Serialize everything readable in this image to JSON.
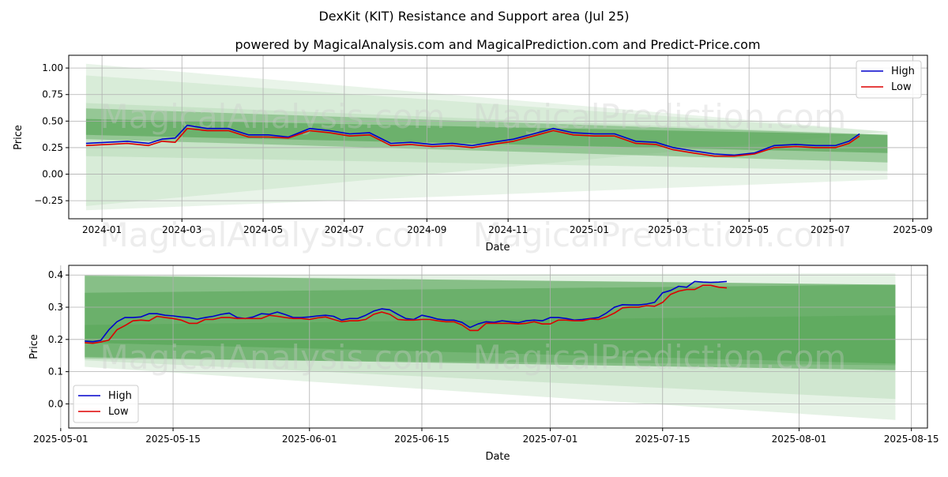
{
  "figure": {
    "title": "DexKit (KIT) Resistance and Support area (Jul 25)",
    "subtitle": "powered by MagicalAnalysis.com and MagicalPrediction.com and Predict-Price.com",
    "watermark_left": "MagicalAnalysis.com",
    "watermark_right": "MagicalPrediction.com",
    "colors": {
      "high": "#0000cc",
      "low": "#dd0000",
      "band_dark": "#4a9e4a",
      "band_light": "#a8d5a8"
    }
  },
  "chart_data": [
    {
      "type": "line",
      "xlabel": "Date",
      "ylabel": "Price",
      "xlim": [
        "2023-12-07",
        "2025-09-12"
      ],
      "ylim": [
        -0.42,
        1.12
      ],
      "grid": true,
      "legend_position": "top-right",
      "x_ticks": [
        "2024-01",
        "2024-03",
        "2024-05",
        "2024-07",
        "2024-09",
        "2024-11",
        "2025-01",
        "2025-03",
        "2025-05",
        "2025-07",
        "2025-09"
      ],
      "x_tick_dates": [
        "2024-01-01",
        "2024-03-01",
        "2024-05-01",
        "2024-07-01",
        "2024-09-01",
        "2024-11-01",
        "2025-01-01",
        "2025-03-01",
        "2025-05-01",
        "2025-07-01",
        "2025-09-01"
      ],
      "y_ticks": [
        "1.00",
        "0.75",
        "0.50",
        "0.25",
        "0.00",
        "−0.25"
      ],
      "y_tick_values": [
        1.0,
        0.75,
        0.5,
        0.25,
        0.0,
        -0.25
      ],
      "series": [
        {
          "name": "High",
          "color": "#0000cc",
          "x": [
            "2023-12-20",
            "2024-01-05",
            "2024-01-20",
            "2024-02-05",
            "2024-02-15",
            "2024-02-25",
            "2024-03-05",
            "2024-03-20",
            "2024-04-05",
            "2024-04-20",
            "2024-05-05",
            "2024-05-20",
            "2024-06-05",
            "2024-06-20",
            "2024-07-05",
            "2024-07-20",
            "2024-08-05",
            "2024-08-20",
            "2024-09-05",
            "2024-09-20",
            "2024-10-05",
            "2024-10-20",
            "2024-11-05",
            "2024-11-20",
            "2024-12-05",
            "2024-12-20",
            "2025-01-05",
            "2025-01-20",
            "2025-02-05",
            "2025-02-20",
            "2025-03-05",
            "2025-03-20",
            "2025-04-05",
            "2025-04-20",
            "2025-05-05",
            "2025-05-20",
            "2025-06-05",
            "2025-06-20",
            "2025-07-05",
            "2025-07-15",
            "2025-07-23"
          ],
          "y": [
            0.29,
            0.3,
            0.31,
            0.29,
            0.33,
            0.34,
            0.46,
            0.43,
            0.43,
            0.37,
            0.37,
            0.35,
            0.43,
            0.41,
            0.38,
            0.39,
            0.29,
            0.3,
            0.28,
            0.29,
            0.27,
            0.3,
            0.33,
            0.38,
            0.43,
            0.39,
            0.38,
            0.38,
            0.31,
            0.3,
            0.25,
            0.22,
            0.19,
            0.18,
            0.2,
            0.27,
            0.28,
            0.27,
            0.27,
            0.31,
            0.38
          ]
        },
        {
          "name": "Low",
          "color": "#dd0000",
          "x": [
            "2023-12-20",
            "2024-01-05",
            "2024-01-20",
            "2024-02-05",
            "2024-02-15",
            "2024-02-25",
            "2024-03-05",
            "2024-03-20",
            "2024-04-05",
            "2024-04-20",
            "2024-05-05",
            "2024-05-20",
            "2024-06-05",
            "2024-06-20",
            "2024-07-05",
            "2024-07-20",
            "2024-08-05",
            "2024-08-20",
            "2024-09-05",
            "2024-09-20",
            "2024-10-05",
            "2024-10-20",
            "2024-11-05",
            "2024-11-20",
            "2024-12-05",
            "2024-12-20",
            "2025-01-05",
            "2025-01-20",
            "2025-02-05",
            "2025-02-20",
            "2025-03-05",
            "2025-03-20",
            "2025-04-05",
            "2025-04-20",
            "2025-05-05",
            "2025-05-20",
            "2025-06-05",
            "2025-06-20",
            "2025-07-05",
            "2025-07-15",
            "2025-07-23"
          ],
          "y": [
            0.27,
            0.28,
            0.29,
            0.27,
            0.31,
            0.3,
            0.43,
            0.41,
            0.41,
            0.35,
            0.35,
            0.34,
            0.41,
            0.39,
            0.36,
            0.37,
            0.27,
            0.28,
            0.26,
            0.27,
            0.25,
            0.28,
            0.31,
            0.36,
            0.41,
            0.37,
            0.36,
            0.36,
            0.29,
            0.28,
            0.23,
            0.2,
            0.17,
            0.17,
            0.19,
            0.25,
            0.26,
            0.25,
            0.25,
            0.29,
            0.36
          ]
        }
      ],
      "bands": [
        {
          "x0": "2023-12-20",
          "x1": "2025-08-13",
          "top": [
            1.04,
            0.4
          ],
          "bottom": [
            -0.34,
            -0.05
          ],
          "shade": "light",
          "opacity": 0.25
        },
        {
          "x0": "2023-12-20",
          "x1": "2025-08-13",
          "top": [
            0.93,
            0.4
          ],
          "bottom": [
            -0.3,
            0.4
          ],
          "shade": "light",
          "opacity": 0.25
        },
        {
          "x0": "2023-12-20",
          "x1": "2025-08-13",
          "top": [
            0.67,
            0.37
          ],
          "bottom": [
            0.17,
            0.03
          ],
          "shade": "light",
          "opacity": 0.35
        },
        {
          "x0": "2023-12-20",
          "x1": "2025-08-13",
          "top": [
            0.62,
            0.37
          ],
          "bottom": [
            0.33,
            0.11
          ],
          "shade": "dark",
          "opacity": 0.4
        },
        {
          "x0": "2023-12-20",
          "x1": "2025-08-13",
          "top": [
            0.52,
            0.37
          ],
          "bottom": [
            0.37,
            0.2
          ],
          "shade": "dark",
          "opacity": 0.55
        }
      ]
    },
    {
      "type": "line",
      "xlabel": "Date",
      "ylabel": "Price",
      "xlim": [
        "2025-05-02",
        "2025-08-17"
      ],
      "ylim": [
        -0.075,
        0.43
      ],
      "grid": true,
      "legend_position": "bottom-left",
      "x_ticks": [
        "2025-05-01",
        "2025-05-15",
        "2025-06-01",
        "2025-06-15",
        "2025-07-01",
        "2025-07-15",
        "2025-08-01",
        "2025-08-15"
      ],
      "x_tick_dates": [
        "2025-05-01",
        "2025-05-15",
        "2025-06-01",
        "2025-06-15",
        "2025-07-01",
        "2025-07-15",
        "2025-08-01",
        "2025-08-15"
      ],
      "y_ticks": [
        "0.4",
        "0.3",
        "0.2",
        "0.1",
        "0.0"
      ],
      "y_tick_values": [
        0.4,
        0.3,
        0.2,
        0.1,
        0.0
      ],
      "series": [
        {
          "name": "High",
          "color": "#0000cc",
          "x": [
            "2025-05-04",
            "2025-05-05",
            "2025-05-06",
            "2025-05-07",
            "2025-05-08",
            "2025-05-09",
            "2025-05-10",
            "2025-05-11",
            "2025-05-12",
            "2025-05-13",
            "2025-05-14",
            "2025-05-15",
            "2025-05-16",
            "2025-05-17",
            "2025-05-18",
            "2025-05-19",
            "2025-05-20",
            "2025-05-21",
            "2025-05-22",
            "2025-05-23",
            "2025-05-24",
            "2025-05-25",
            "2025-05-26",
            "2025-05-27",
            "2025-05-28",
            "2025-05-29",
            "2025-05-30",
            "2025-05-31",
            "2025-06-01",
            "2025-06-02",
            "2025-06-03",
            "2025-06-04",
            "2025-06-05",
            "2025-06-06",
            "2025-06-07",
            "2025-06-08",
            "2025-06-09",
            "2025-06-10",
            "2025-06-11",
            "2025-06-12",
            "2025-06-13",
            "2025-06-14",
            "2025-06-15",
            "2025-06-16",
            "2025-06-17",
            "2025-06-18",
            "2025-06-19",
            "2025-06-20",
            "2025-06-21",
            "2025-06-22",
            "2025-06-23",
            "2025-06-24",
            "2025-06-25",
            "2025-06-26",
            "2025-06-27",
            "2025-06-28",
            "2025-06-29",
            "2025-06-30",
            "2025-07-01",
            "2025-07-02",
            "2025-07-03",
            "2025-07-04",
            "2025-07-05",
            "2025-07-06",
            "2025-07-07",
            "2025-07-08",
            "2025-07-09",
            "2025-07-10",
            "2025-07-11",
            "2025-07-12",
            "2025-07-13",
            "2025-07-14",
            "2025-07-15",
            "2025-07-16",
            "2025-07-17",
            "2025-07-18",
            "2025-07-19",
            "2025-07-20",
            "2025-07-21",
            "2025-07-22",
            "2025-07-23"
          ],
          "y": [
            0.195,
            0.193,
            0.197,
            0.23,
            0.255,
            0.268,
            0.268,
            0.27,
            0.28,
            0.28,
            0.275,
            0.273,
            0.27,
            0.268,
            0.263,
            0.268,
            0.272,
            0.278,
            0.282,
            0.268,
            0.265,
            0.27,
            0.28,
            0.278,
            0.285,
            0.277,
            0.268,
            0.268,
            0.27,
            0.273,
            0.275,
            0.272,
            0.26,
            0.265,
            0.265,
            0.275,
            0.288,
            0.295,
            0.292,
            0.278,
            0.265,
            0.262,
            0.275,
            0.27,
            0.263,
            0.26,
            0.26,
            0.253,
            0.237,
            0.248,
            0.255,
            0.253,
            0.258,
            0.255,
            0.252,
            0.258,
            0.26,
            0.258,
            0.268,
            0.268,
            0.265,
            0.26,
            0.262,
            0.265,
            0.268,
            0.282,
            0.3,
            0.308,
            0.307,
            0.307,
            0.31,
            0.315,
            0.345,
            0.352,
            0.365,
            0.362,
            0.38,
            0.378,
            0.377,
            0.378,
            0.38
          ]
        },
        {
          "name": "Low",
          "color": "#dd0000",
          "x": [
            "2025-05-04",
            "2025-05-05",
            "2025-05-06",
            "2025-05-07",
            "2025-05-08",
            "2025-05-09",
            "2025-05-10",
            "2025-05-11",
            "2025-05-12",
            "2025-05-13",
            "2025-05-14",
            "2025-05-15",
            "2025-05-16",
            "2025-05-17",
            "2025-05-18",
            "2025-05-19",
            "2025-05-20",
            "2025-05-21",
            "2025-05-22",
            "2025-05-23",
            "2025-05-24",
            "2025-05-25",
            "2025-05-26",
            "2025-05-27",
            "2025-05-28",
            "2025-05-29",
            "2025-05-30",
            "2025-05-31",
            "2025-06-01",
            "2025-06-02",
            "2025-06-03",
            "2025-06-04",
            "2025-06-05",
            "2025-06-06",
            "2025-06-07",
            "2025-06-08",
            "2025-06-09",
            "2025-06-10",
            "2025-06-11",
            "2025-06-12",
            "2025-06-13",
            "2025-06-14",
            "2025-06-15",
            "2025-06-16",
            "2025-06-17",
            "2025-06-18",
            "2025-06-19",
            "2025-06-20",
            "2025-06-21",
            "2025-06-22",
            "2025-06-23",
            "2025-06-24",
            "2025-06-25",
            "2025-06-26",
            "2025-06-27",
            "2025-06-28",
            "2025-06-29",
            "2025-06-30",
            "2025-07-01",
            "2025-07-02",
            "2025-07-03",
            "2025-07-04",
            "2025-07-05",
            "2025-07-06",
            "2025-07-07",
            "2025-07-08",
            "2025-07-09",
            "2025-07-10",
            "2025-07-11",
            "2025-07-12",
            "2025-07-13",
            "2025-07-14",
            "2025-07-15",
            "2025-07-16",
            "2025-07-17",
            "2025-07-18",
            "2025-07-19",
            "2025-07-20",
            "2025-07-21",
            "2025-07-22",
            "2025-07-23"
          ],
          "y": [
            0.19,
            0.188,
            0.192,
            0.198,
            0.23,
            0.243,
            0.258,
            0.26,
            0.258,
            0.272,
            0.268,
            0.265,
            0.26,
            0.25,
            0.25,
            0.262,
            0.262,
            0.268,
            0.268,
            0.265,
            0.265,
            0.265,
            0.265,
            0.275,
            0.272,
            0.268,
            0.265,
            0.265,
            0.262,
            0.267,
            0.27,
            0.262,
            0.255,
            0.258,
            0.258,
            0.262,
            0.278,
            0.285,
            0.278,
            0.262,
            0.26,
            0.26,
            0.262,
            0.262,
            0.258,
            0.255,
            0.255,
            0.245,
            0.228,
            0.228,
            0.25,
            0.25,
            0.25,
            0.25,
            0.248,
            0.25,
            0.255,
            0.248,
            0.248,
            0.26,
            0.26,
            0.258,
            0.258,
            0.263,
            0.262,
            0.27,
            0.282,
            0.298,
            0.3,
            0.3,
            0.305,
            0.303,
            0.315,
            0.34,
            0.35,
            0.355,
            0.355,
            0.368,
            0.368,
            0.362,
            0.36
          ]
        }
      ],
      "bands": [
        {
          "x0": "2025-05-04",
          "x1": "2025-08-13",
          "top": [
            0.4,
            0.405
          ],
          "bottom": [
            0.115,
            -0.05
          ],
          "shade": "light",
          "opacity": 0.3
        },
        {
          "x0": "2025-05-04",
          "x1": "2025-08-13",
          "top": [
            0.4,
            0.37
          ],
          "bottom": [
            0.135,
            0.015
          ],
          "shade": "light",
          "opacity": 0.35
        },
        {
          "x0": "2025-05-04",
          "x1": "2025-08-13",
          "top": [
            0.398,
            0.37
          ],
          "bottom": [
            0.145,
            0.105
          ],
          "shade": "dark",
          "opacity": 0.55
        },
        {
          "x0": "2025-05-04",
          "x1": "2025-08-13",
          "top": [
            0.345,
            0.37
          ],
          "bottom": [
            0.19,
            0.125
          ],
          "shade": "dark",
          "opacity": 0.45
        },
        {
          "x0": "2025-05-04",
          "x1": "2025-08-13",
          "top": [
            0.245,
            0.275
          ],
          "bottom": [
            0.14,
            0.12
          ],
          "shade": "dark",
          "opacity": 0.3
        }
      ]
    }
  ]
}
